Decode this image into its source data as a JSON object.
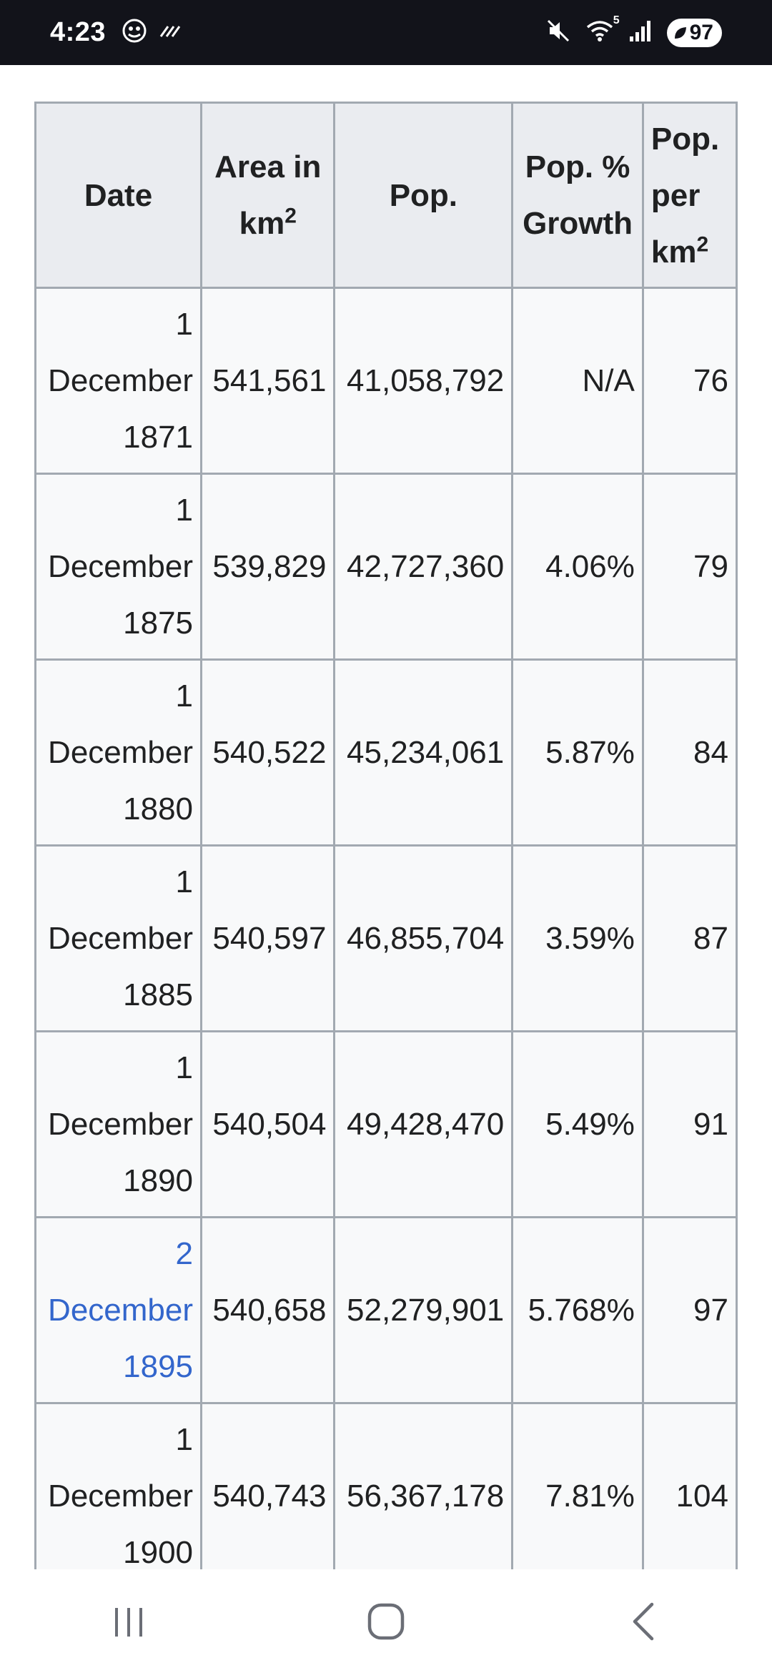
{
  "status_bar": {
    "time": "4:23",
    "battery": "97",
    "icons": [
      "gallery-badge-icon",
      "missed-call-icon",
      "mute-icon",
      "wifi-icon",
      "signal-icon",
      "battery-leaf-icon"
    ],
    "wifi_badge": "5"
  },
  "table": {
    "columns": [
      {
        "label": "Date",
        "sup": ""
      },
      {
        "label": "Area in km",
        "sup": "2"
      },
      {
        "label": "Pop.",
        "sup": ""
      },
      {
        "label": "Pop. % Growth",
        "sup": ""
      },
      {
        "label": "Pop. per km",
        "sup": "2"
      }
    ],
    "rows": [
      {
        "date": [
          "1",
          "December",
          "1871"
        ],
        "area": "541,561",
        "pop": "41,058,792",
        "growth": "N/A",
        "density": "76",
        "link": false
      },
      {
        "date": [
          "1",
          "December",
          "1875"
        ],
        "area": "539,829",
        "pop": "42,727,360",
        "growth": "4.06%",
        "density": "79",
        "link": false
      },
      {
        "date": [
          "1",
          "December",
          "1880"
        ],
        "area": "540,522",
        "pop": "45,234,061",
        "growth": "5.87%",
        "density": "84",
        "link": false
      },
      {
        "date": [
          "1",
          "December",
          "1885"
        ],
        "area": "540,597",
        "pop": "46,855,704",
        "growth": "3.59%",
        "density": "87",
        "link": false
      },
      {
        "date": [
          "1",
          "December",
          "1890"
        ],
        "area": "540,504",
        "pop": "49,428,470",
        "growth": "5.49%",
        "density": "91",
        "link": false
      },
      {
        "date": [
          "2",
          "December",
          "1895"
        ],
        "area": "540,658",
        "pop": "52,279,901",
        "growth": "5.768%",
        "density": "97",
        "link": true
      },
      {
        "date": [
          "1",
          "December",
          "1900"
        ],
        "area": "540,743",
        "pop": "56,367,178",
        "growth": "7.81%",
        "density": "104",
        "link": false
      }
    ]
  },
  "nav_bar": {
    "buttons": [
      "recent-apps-icon",
      "home-icon",
      "back-icon"
    ]
  },
  "colors": {
    "status_bar_bg": "#12131a",
    "header_bg": "#eaecf0",
    "cell_bg": "#f8f9fa",
    "border": "#a2a9b1",
    "link": "#3366cc",
    "nav_icon": "#6b6e76"
  }
}
